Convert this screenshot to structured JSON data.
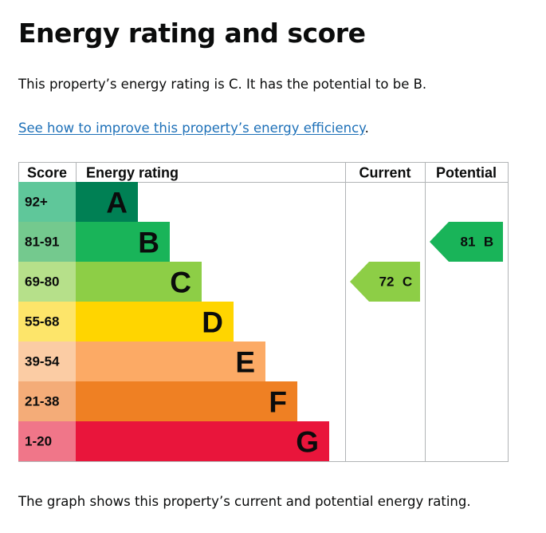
{
  "page": {
    "title": "Energy rating and score",
    "summary": "This property’s energy rating is C. It has the potential to be B.",
    "link_text": "See how to improve this property’s energy efficiency",
    "link_suffix": ".",
    "footnote": "The graph shows this property’s current and potential energy rating."
  },
  "chart_data": {
    "type": "bar",
    "headers": {
      "score": "Score",
      "rating": "Energy rating",
      "current": "Current",
      "potential": "Potential"
    },
    "bands": [
      {
        "letter": "A",
        "range": "92+",
        "color": "#008054",
        "score_bg": "#5fc79a"
      },
      {
        "letter": "B",
        "range": "81-91",
        "color": "#19b459",
        "score_bg": "#74c98e"
      },
      {
        "letter": "C",
        "range": "69-80",
        "color": "#8dce46",
        "score_bg": "#b6e08a"
      },
      {
        "letter": "D",
        "range": "55-68",
        "color": "#ffd500",
        "score_bg": "#fde56a"
      },
      {
        "letter": "E",
        "range": "39-54",
        "color": "#fcaa65",
        "score_bg": "#fbcca4"
      },
      {
        "letter": "F",
        "range": "21-38",
        "color": "#ef8023",
        "score_bg": "#f4ac78"
      },
      {
        "letter": "G",
        "range": "1-20",
        "color": "#e9153b",
        "score_bg": "#f07689"
      }
    ],
    "current": {
      "score": 72,
      "letter": "C",
      "color": "#8dce46"
    },
    "potential": {
      "score": 81,
      "letter": "B",
      "color": "#19b459"
    }
  }
}
